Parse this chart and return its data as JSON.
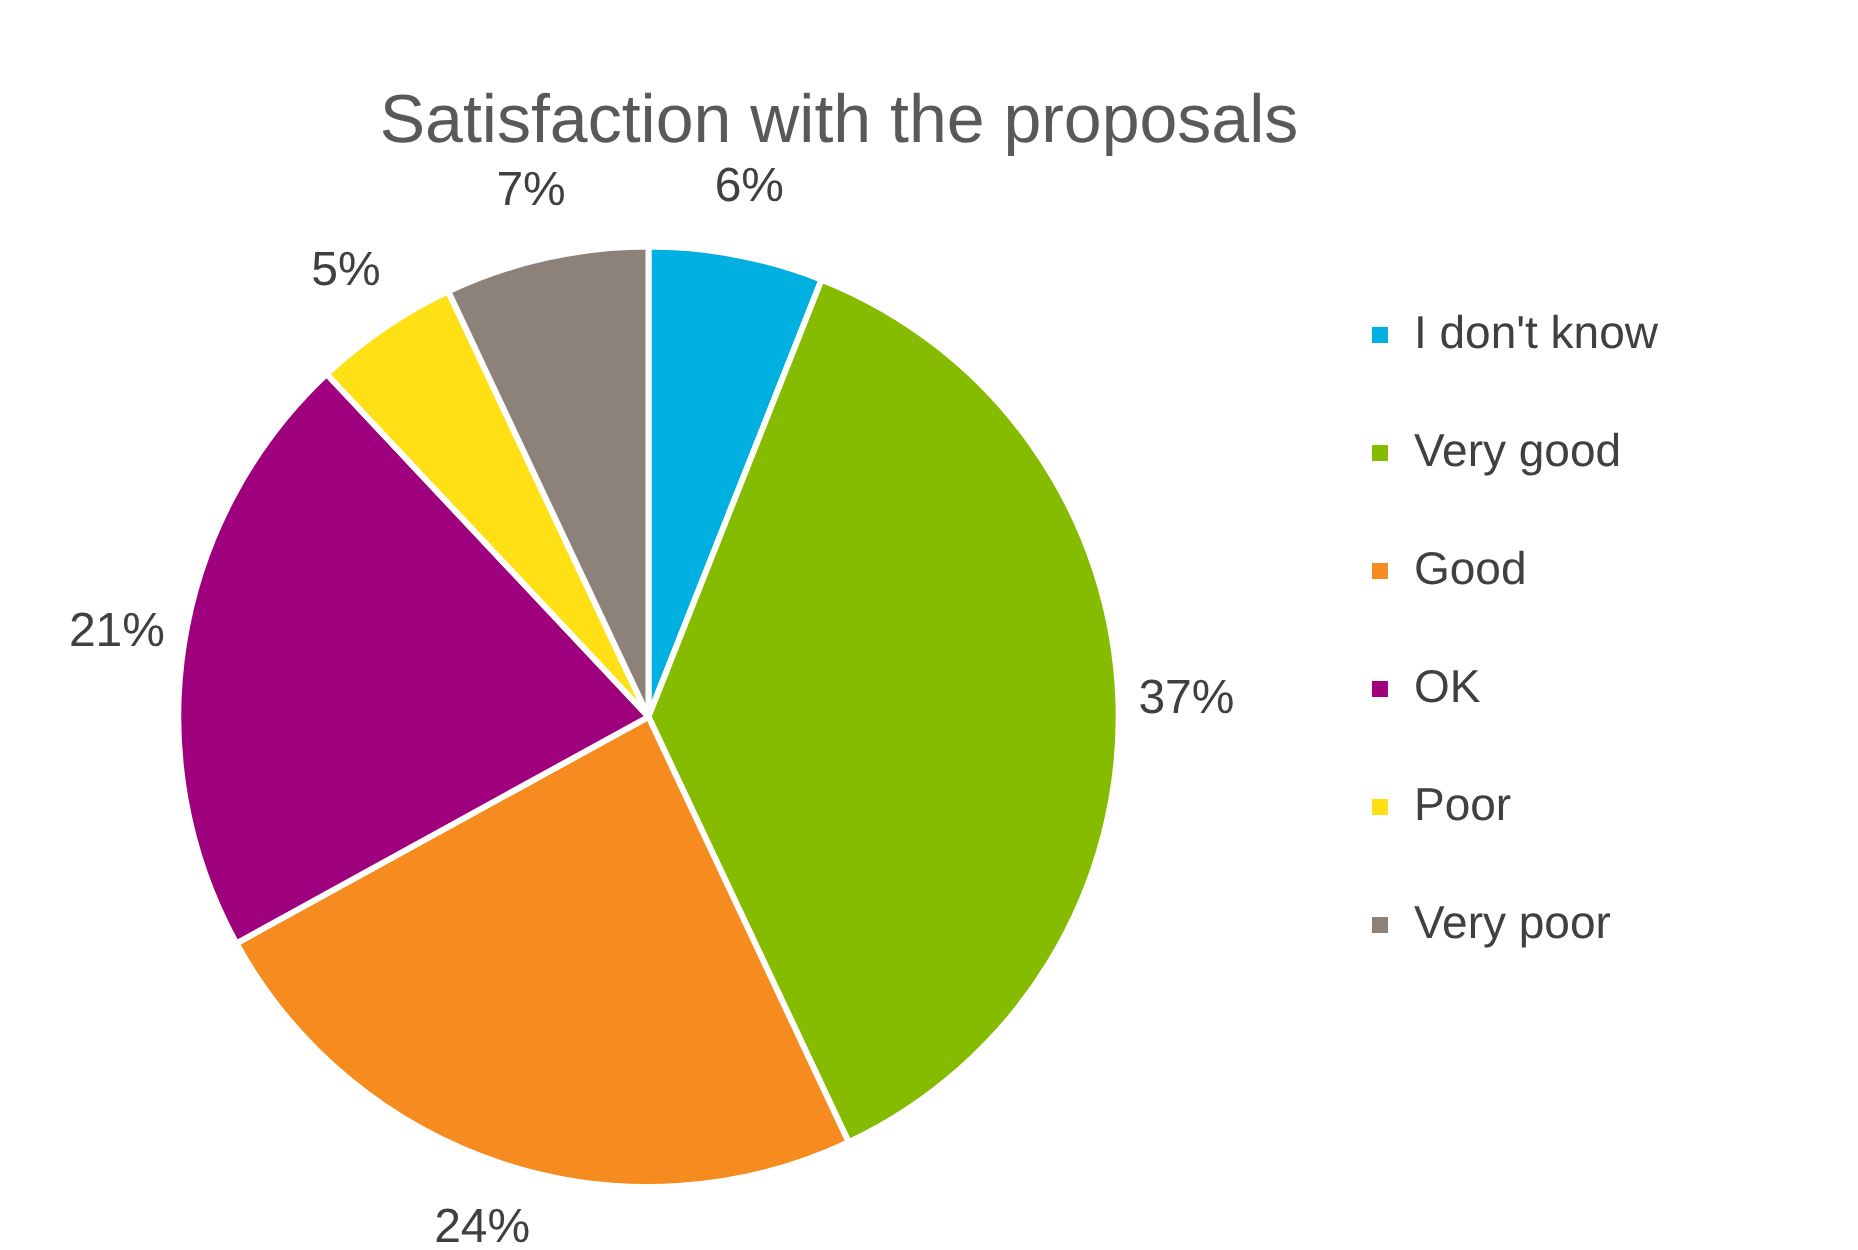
{
  "chart_data": {
    "type": "pie",
    "title": "Satisfaction with the proposals",
    "categories": [
      "I don't know",
      "Very good",
      "Good",
      "OK",
      "Poor",
      "Very poor"
    ],
    "values": [
      6,
      37,
      24,
      21,
      5,
      7
    ],
    "colors": [
      "#00b0e0",
      "#86bc00",
      "#f68b1f",
      "#9e007e",
      "#ffe014",
      "#8c8279"
    ],
    "value_labels": [
      "6%",
      "37%",
      "24%",
      "21%",
      "5%",
      "7%"
    ],
    "legend": "right"
  }
}
